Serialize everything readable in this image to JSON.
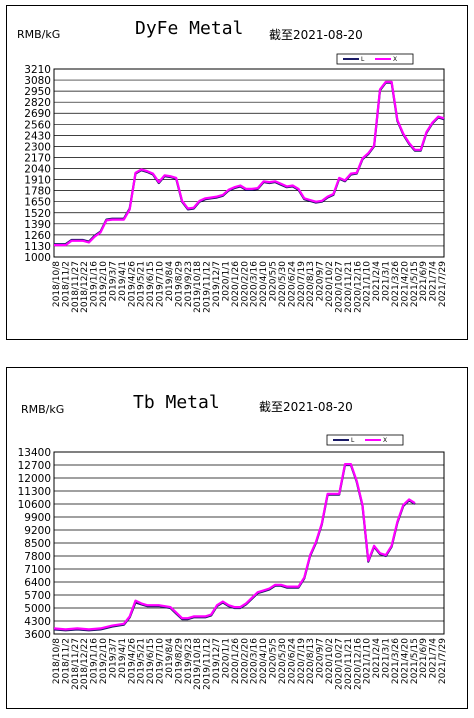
{
  "chart_data": [
    {
      "type": "line",
      "unit_label": "RMB/kG",
      "title": "DyFe Metal",
      "as_of": "截至2021-08-20",
      "ylim": [
        1000,
        3210
      ],
      "yticks": [
        "3210",
        "3080",
        "2950",
        "2820",
        "2690",
        "2560",
        "2430",
        "2300",
        "2170",
        "2040",
        "1910",
        "1780",
        "1650",
        "1520",
        "1390",
        "1260",
        "1130",
        "1000"
      ],
      "xticks": [
        "2018/10/8",
        "2018/11/2",
        "2018/11/27",
        "2018/12/22",
        "2019/1/16",
        "2019/2/10",
        "2019/3/7",
        "2019/4/1",
        "2019/4/26",
        "2019/5/21",
        "2019/6/15",
        "2019/7/10",
        "2019/8/4",
        "2019/8/29",
        "2019/9/23",
        "2019/10/18",
        "2019/11/12",
        "2019/12/7",
        "2020/1/1",
        "2020/1/26",
        "2020/2/20",
        "2020/3/16",
        "2020/4/10",
        "2020/5/5",
        "2020/5/30",
        "2020/6/24",
        "2020/7/19",
        "2020/8/13",
        "2020/9/7",
        "2020/10/2",
        "2020/10/27",
        "2020/11/21",
        "2020/12/16",
        "2021/1/10",
        "2021/2/4",
        "2021/3/1",
        "2021/3/26",
        "2021/4/20",
        "2021/5/15",
        "2021/6/9",
        "2021/7/4",
        "2021/7/29"
      ],
      "series": [
        {
          "name": "L",
          "color": "#1a1a66",
          "values": [
            [
              0,
              1150
            ],
            [
              2,
              1150
            ],
            [
              3,
              1200
            ],
            [
              5,
              1200
            ],
            [
              6,
              1180
            ],
            [
              7,
              1250
            ],
            [
              8,
              1300
            ],
            [
              9,
              1440
            ],
            [
              10,
              1450
            ],
            [
              12,
              1450
            ],
            [
              13,
              1570
            ],
            [
              14,
              1980
            ],
            [
              15,
              2020
            ],
            [
              16,
              2000
            ],
            [
              17,
              1970
            ],
            [
              18,
              1870
            ],
            [
              19,
              1950
            ],
            [
              20,
              1940
            ],
            [
              21,
              1920
            ],
            [
              22,
              1650
            ],
            [
              23,
              1560
            ],
            [
              24,
              1570
            ],
            [
              25,
              1650
            ],
            [
              26,
              1680
            ],
            [
              27,
              1690
            ],
            [
              28,
              1700
            ],
            [
              29,
              1720
            ],
            [
              30,
              1780
            ],
            [
              31,
              1810
            ],
            [
              32,
              1830
            ],
            [
              33,
              1790
            ],
            [
              34,
              1790
            ],
            [
              35,
              1800
            ],
            [
              36,
              1880
            ],
            [
              37,
              1870
            ],
            [
              38,
              1880
            ],
            [
              39,
              1850
            ],
            [
              40,
              1820
            ],
            [
              41,
              1830
            ],
            [
              42,
              1790
            ],
            [
              43,
              1680
            ],
            [
              44,
              1660
            ],
            [
              45,
              1640
            ],
            [
              46,
              1650
            ],
            [
              47,
              1700
            ],
            [
              48,
              1730
            ],
            [
              49,
              1920
            ],
            [
              50,
              1890
            ],
            [
              51,
              1970
            ],
            [
              52,
              1980
            ],
            [
              53,
              2150
            ],
            [
              54,
              2210
            ],
            [
              55,
              2300
            ],
            [
              56,
              2960
            ],
            [
              57,
              3050
            ],
            [
              58,
              3050
            ],
            [
              59,
              2600
            ],
            [
              60,
              2440
            ],
            [
              61,
              2330
            ],
            [
              62,
              2250
            ],
            [
              63,
              2250
            ],
            [
              64,
              2460
            ],
            [
              65,
              2570
            ],
            [
              66,
              2640
            ],
            [
              67,
              2620
            ]
          ]
        },
        {
          "name": "X",
          "color": "#ff00ff",
          "values": [
            [
              0,
              1140
            ],
            [
              2,
              1140
            ],
            [
              3,
              1190
            ],
            [
              5,
              1190
            ],
            [
              6,
              1170
            ],
            [
              7,
              1240
            ],
            [
              8,
              1290
            ],
            [
              9,
              1430
            ],
            [
              10,
              1440
            ],
            [
              12,
              1440
            ],
            [
              13,
              1560
            ],
            [
              14,
              1990
            ],
            [
              15,
              2030
            ],
            [
              16,
              2010
            ],
            [
              17,
              1980
            ],
            [
              18,
              1880
            ],
            [
              19,
              1960
            ],
            [
              20,
              1950
            ],
            [
              21,
              1930
            ],
            [
              22,
              1660
            ],
            [
              23,
              1570
            ],
            [
              24,
              1580
            ],
            [
              25,
              1660
            ],
            [
              26,
              1690
            ],
            [
              27,
              1700
            ],
            [
              28,
              1710
            ],
            [
              29,
              1730
            ],
            [
              30,
              1790
            ],
            [
              31,
              1820
            ],
            [
              32,
              1840
            ],
            [
              33,
              1800
            ],
            [
              34,
              1800
            ],
            [
              35,
              1810
            ],
            [
              36,
              1890
            ],
            [
              37,
              1880
            ],
            [
              38,
              1890
            ],
            [
              39,
              1860
            ],
            [
              40,
              1830
            ],
            [
              41,
              1840
            ],
            [
              42,
              1800
            ],
            [
              43,
              1690
            ],
            [
              44,
              1670
            ],
            [
              45,
              1650
            ],
            [
              46,
              1660
            ],
            [
              47,
              1710
            ],
            [
              48,
              1740
            ],
            [
              49,
              1930
            ],
            [
              50,
              1900
            ],
            [
              51,
              1980
            ],
            [
              52,
              1990
            ],
            [
              53,
              2160
            ],
            [
              54,
              2220
            ],
            [
              55,
              2310
            ],
            [
              56,
              2970
            ],
            [
              57,
              3060
            ],
            [
              58,
              3060
            ],
            [
              59,
              2610
            ],
            [
              60,
              2450
            ],
            [
              61,
              2340
            ],
            [
              62,
              2260
            ],
            [
              63,
              2260
            ],
            [
              64,
              2470
            ],
            [
              65,
              2580
            ],
            [
              66,
              2650
            ],
            [
              67,
              2630
            ]
          ]
        }
      ]
    },
    {
      "type": "line",
      "unit_label": "RMB/kG",
      "title": "Tb Metal",
      "as_of": "截至2021-08-20",
      "ylim": [
        3600,
        13400
      ],
      "yticks": [
        "13400",
        "12700",
        "12000",
        "11300",
        "10600",
        "9900",
        "9200",
        "8500",
        "7800",
        "7100",
        "6400",
        "5700",
        "5000",
        "4300",
        "3600"
      ],
      "xticks": [
        "2018/10/8",
        "2018/11/2",
        "2018/11/27",
        "2018/12/22",
        "2019/1/16",
        "2019/2/10",
        "2019/3/7",
        "2019/4/1",
        "2019/4/26",
        "2019/5/21",
        "2019/6/15",
        "2019/7/10",
        "2019/8/4",
        "2019/8/29",
        "2019/9/23",
        "2019/10/18",
        "2019/11/12",
        "2019/12/7",
        "2020/1/1",
        "2020/1/26",
        "2020/2/20",
        "2020/3/16",
        "2020/4/10",
        "2020/5/5",
        "2020/5/30",
        "2020/6/24",
        "2020/7/19",
        "2020/8/13",
        "2020/9/7",
        "2020/10/2",
        "2020/10/27",
        "2020/11/21",
        "2020/12/16",
        "2021/1/10",
        "2021/2/4",
        "2021/3/1",
        "2021/3/26",
        "2021/4/20",
        "2021/5/15",
        "2021/6/9",
        "2021/7/4",
        "2021/7/29"
      ],
      "series": [
        {
          "name": "L",
          "color": "#1a1a66",
          "values": [
            [
              0,
              3850
            ],
            [
              2,
              3800
            ],
            [
              4,
              3850
            ],
            [
              6,
              3800
            ],
            [
              8,
              3850
            ],
            [
              10,
              4000
            ],
            [
              12,
              4100
            ],
            [
              13,
              4500
            ],
            [
              14,
              5300
            ],
            [
              15,
              5200
            ],
            [
              16,
              5100
            ],
            [
              18,
              5100
            ],
            [
              20,
              5000
            ],
            [
              21,
              4700
            ],
            [
              22,
              4400
            ],
            [
              23,
              4400
            ],
            [
              24,
              4500
            ],
            [
              26,
              4500
            ],
            [
              27,
              4600
            ],
            [
              28,
              5100
            ],
            [
              29,
              5300
            ],
            [
              30,
              5100
            ],
            [
              31,
              5000
            ],
            [
              32,
              5000
            ],
            [
              33,
              5200
            ],
            [
              34,
              5500
            ],
            [
              35,
              5800
            ],
            [
              36,
              5900
            ],
            [
              37,
              6000
            ],
            [
              38,
              6200
            ],
            [
              39,
              6200
            ],
            [
              40,
              6100
            ],
            [
              41,
              6100
            ],
            [
              42,
              6100
            ],
            [
              43,
              6600
            ],
            [
              44,
              7800
            ],
            [
              45,
              8500
            ],
            [
              46,
              9500
            ],
            [
              47,
              11100
            ],
            [
              48,
              11100
            ],
            [
              49,
              11100
            ],
            [
              50,
              12700
            ],
            [
              51,
              12700
            ],
            [
              52,
              11800
            ],
            [
              53,
              10500
            ],
            [
              54,
              7500
            ],
            [
              55,
              8300
            ],
            [
              56,
              7900
            ],
            [
              57,
              7800
            ],
            [
              58,
              8300
            ],
            [
              59,
              9600
            ],
            [
              60,
              10500
            ],
            [
              61,
              10800
            ],
            [
              62,
              10600
            ]
          ]
        },
        {
          "name": "X",
          "color": "#ff00ff",
          "values": [
            [
              0,
              3900
            ],
            [
              2,
              3850
            ],
            [
              4,
              3900
            ],
            [
              6,
              3850
            ],
            [
              8,
              3900
            ],
            [
              10,
              4050
            ],
            [
              12,
              4150
            ],
            [
              13,
              4550
            ],
            [
              14,
              5400
            ],
            [
              15,
              5250
            ],
            [
              16,
              5150
            ],
            [
              18,
              5150
            ],
            [
              20,
              5050
            ],
            [
              21,
              4750
            ],
            [
              22,
              4450
            ],
            [
              23,
              4450
            ],
            [
              24,
              4550
            ],
            [
              26,
              4550
            ],
            [
              27,
              4650
            ],
            [
              28,
              5150
            ],
            [
              29,
              5350
            ],
            [
              30,
              5150
            ],
            [
              31,
              5050
            ],
            [
              32,
              5050
            ],
            [
              33,
              5250
            ],
            [
              34,
              5550
            ],
            [
              35,
              5850
            ],
            [
              36,
              5950
            ],
            [
              37,
              6050
            ],
            [
              38,
              6250
            ],
            [
              39,
              6250
            ],
            [
              40,
              6150
            ],
            [
              41,
              6150
            ],
            [
              42,
              6150
            ],
            [
              43,
              6650
            ],
            [
              44,
              7850
            ],
            [
              45,
              8550
            ],
            [
              46,
              9550
            ],
            [
              47,
              11150
            ],
            [
              48,
              11150
            ],
            [
              49,
              11150
            ],
            [
              50,
              12750
            ],
            [
              51,
              12750
            ],
            [
              52,
              11850
            ],
            [
              53,
              10550
            ],
            [
              54,
              7550
            ],
            [
              55,
              8350
            ],
            [
              56,
              7950
            ],
            [
              57,
              7850
            ],
            [
              58,
              8350
            ],
            [
              59,
              9650
            ],
            [
              60,
              10550
            ],
            [
              61,
              10850
            ],
            [
              62,
              10650
            ]
          ]
        }
      ]
    }
  ]
}
